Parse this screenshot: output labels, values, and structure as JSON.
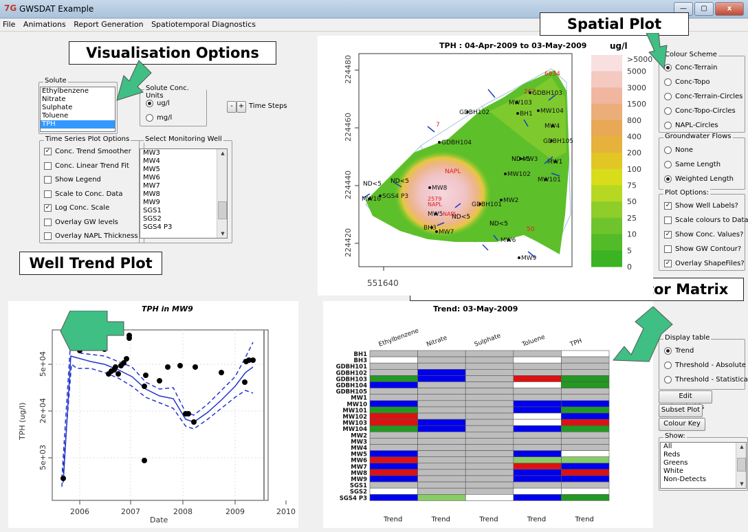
{
  "window": {
    "icon": "7G",
    "title": "GWSDAT Example",
    "btn_min": "—",
    "btn_max": "▢",
    "btn_close": "x"
  },
  "menu": [
    "File",
    "Animations",
    "Report Generation",
    "Spatiotemporal Diagnostics"
  ],
  "callouts": {
    "visualisation": "Visualisation Options",
    "spatial": "Spatial Plot",
    "well_trend": "Well Trend Plot",
    "matrix": "Trend and Threshold Indicator Matrix"
  },
  "solute": {
    "legend": "Solute",
    "items": [
      "Ethylbenzene",
      "Nitrate",
      "Sulphate",
      "Toluene",
      "TPH"
    ],
    "selected": "TPH"
  },
  "units": {
    "legend": "Solute Conc. Units",
    "options": [
      "ug/l",
      "mg/l"
    ],
    "selected": "ug/l"
  },
  "timesteps": {
    "minus": "-",
    "plus": "+",
    "label": "Time Steps"
  },
  "ts_options": {
    "legend": "Time Series Plot Options",
    "items": [
      {
        "label": "Conc. Trend Smoother",
        "checked": true
      },
      {
        "label": "Conc. Linear Trend Fit",
        "checked": false
      },
      {
        "label": "Show Legend",
        "checked": false
      },
      {
        "label": "Scale to Conc. Data",
        "checked": false
      },
      {
        "label": "Log Conc. Scale",
        "checked": true
      },
      {
        "label": "Overlay GW levels",
        "checked": false
      },
      {
        "label": "Overlay NAPL Thickness",
        "checked": false
      }
    ]
  },
  "wells_select": {
    "legend": "Select Monitoring Well",
    "items": [
      "MW3",
      "MW4",
      "MW5",
      "MW6",
      "MW7",
      "MW8",
      "MW9",
      "SGS1",
      "SGS2",
      "SGS4 P3"
    ],
    "selected": "MW9"
  },
  "spatial": {
    "title": "TPH  : 04-Apr-2009 to 03-May-2009",
    "y_ticks": [
      "224480",
      "224460",
      "224440",
      "224420"
    ],
    "x_tick": "551640",
    "unit": "ug/l",
    "legend_levels": [
      ">5000",
      "5000",
      "3000",
      "1500",
      "800",
      "400",
      "200",
      "100",
      "75",
      "50",
      "25",
      "10",
      "5",
      "0"
    ],
    "legend_colors": [
      "#f8dfe0",
      "#f3c9c0",
      "#f0b6a0",
      "#ebae78",
      "#e8a855",
      "#e6b23c",
      "#e2c625",
      "#d7dd1a",
      "#b6d822",
      "#8fcd2b",
      "#6fc42d",
      "#52bb27",
      "#3cb322"
    ],
    "well_labels": [
      "GDBH103",
      "MW103",
      "MW104",
      "GDBH102",
      "BH1",
      "MW4",
      "GDBH104",
      "GDBH105",
      "MW3",
      "MW1",
      "MW102",
      "MW101",
      "MW8",
      "GDBH101",
      "MW2",
      "MW10",
      "SGS4 P3",
      "BH3",
      "MW7",
      "MW6",
      "MW9",
      "MW5"
    ],
    "conc_values": [
      "6834",
      "267",
      "7",
      "ND<5",
      "ND<5",
      "ND<5",
      "ND<5",
      "ND<5",
      "NAPL",
      "NAPL",
      "NAPL",
      "2579",
      "50"
    ]
  },
  "colour_scheme": {
    "legend": "Colour Scheme",
    "options": [
      "Conc-Terrain",
      "Conc-Topo",
      "Conc-Terrain-Circles",
      "Conc-Topo-Circles",
      "NAPL-Circles"
    ],
    "selected": "Conc-Terrain"
  },
  "gw_flows": {
    "legend": "Groundwater Flows",
    "options": [
      "None",
      "Same Length",
      "Weighted Length"
    ],
    "selected": "Weighted Length"
  },
  "plot_options": {
    "legend": "Plot Options:",
    "items": [
      {
        "label": "Show Well Labels?",
        "checked": true
      },
      {
        "label": "Scale colours to Data?",
        "checked": false
      },
      {
        "label": "Show Conc. Values?",
        "checked": true
      },
      {
        "label": "Show GW Contour?",
        "checked": false
      },
      {
        "label": "Overlay ShapeFiles?",
        "checked": true
      }
    ]
  },
  "trend": {
    "title": "TPH  in  MW9",
    "xlabel": "Date",
    "ylabel": "TPH (ug/l)",
    "x_ticks": [
      "2006",
      "2007",
      "2008",
      "2009",
      "2010"
    ],
    "y_ticks": [
      "5e+04",
      "2e+04",
      "5e+03"
    ]
  },
  "matrix": {
    "title": "Trend: 03-May-2009",
    "columns": [
      "Ethylbenzene",
      "Nitrate",
      "Sulphate",
      "Toluene",
      "TPH"
    ],
    "footer": [
      "Trend",
      "Trend",
      "Trend",
      "Trend",
      "Trend"
    ],
    "rows": [
      "BH1",
      "BH3",
      "GDBH101",
      "GDBH102",
      "GDBH103",
      "GDBH104",
      "GDBH105",
      "MW1",
      "MW10",
      "MW101",
      "MW102",
      "MW103",
      "MW104",
      "MW2",
      "MW3",
      "MW4",
      "MW5",
      "MW6",
      "MW7",
      "MW8",
      "MW9",
      "SGS1",
      "SGS2",
      "SGS4 P3"
    ],
    "cells": [
      [
        "g",
        "g",
        "g",
        "g",
        "w"
      ],
      [
        "w",
        "g",
        "g",
        "w",
        "g"
      ],
      [
        "g",
        "g",
        "g",
        "g",
        "g"
      ],
      [
        "g",
        "b",
        "g",
        "g",
        "g"
      ],
      [
        "G",
        "b",
        "g",
        "r",
        "G"
      ],
      [
        "b",
        "g",
        "g",
        "w",
        "G"
      ],
      [
        "g",
        "g",
        "g",
        "g",
        "g"
      ],
      [
        "g",
        "g",
        "g",
        "g",
        "g"
      ],
      [
        "b",
        "g",
        "g",
        "b",
        "b"
      ],
      [
        "G",
        "g",
        "g",
        "b",
        "G"
      ],
      [
        "r",
        "g",
        "g",
        "w",
        "b"
      ],
      [
        "r",
        "b",
        "g",
        "w",
        "r"
      ],
      [
        "G",
        "b",
        "g",
        "b",
        "G"
      ],
      [
        "g",
        "g",
        "g",
        "g",
        "g"
      ],
      [
        "g",
        "g",
        "g",
        "g",
        "g"
      ],
      [
        "g",
        "g",
        "g",
        "g",
        "g"
      ],
      [
        "b",
        "g",
        "g",
        "b",
        "w"
      ],
      [
        "r",
        "g",
        "g",
        "l",
        "l"
      ],
      [
        "b",
        "g",
        "g",
        "r",
        "b"
      ],
      [
        "r",
        "g",
        "g",
        "b",
        "r"
      ],
      [
        "b",
        "g",
        "g",
        "b",
        "b"
      ],
      [
        "g",
        "g",
        "g",
        "g",
        "g"
      ],
      [
        "w",
        "g",
        "g",
        "w",
        "w"
      ],
      [
        "b",
        "l",
        "w",
        "b",
        "G"
      ]
    ],
    "palette": {
      "g": "#bdbdbd",
      "w": "#ffffff",
      "b": "#0000ee",
      "r": "#dd1111",
      "G": "#229922",
      "l": "#88cc66"
    }
  },
  "display_table": {
    "legend": "Display table",
    "options": [
      "Trend",
      "Threshold - Absolute",
      "Threshold - Statistical"
    ],
    "selected": "Trend"
  },
  "buttons": {
    "edit": "Edit Thresholds",
    "subset": "Subset Plot",
    "colour_key": "Colour Key"
  },
  "show": {
    "legend": "Show:",
    "items": [
      "All",
      "Reds",
      "Greens",
      "White",
      "Non-Detects"
    ]
  }
}
